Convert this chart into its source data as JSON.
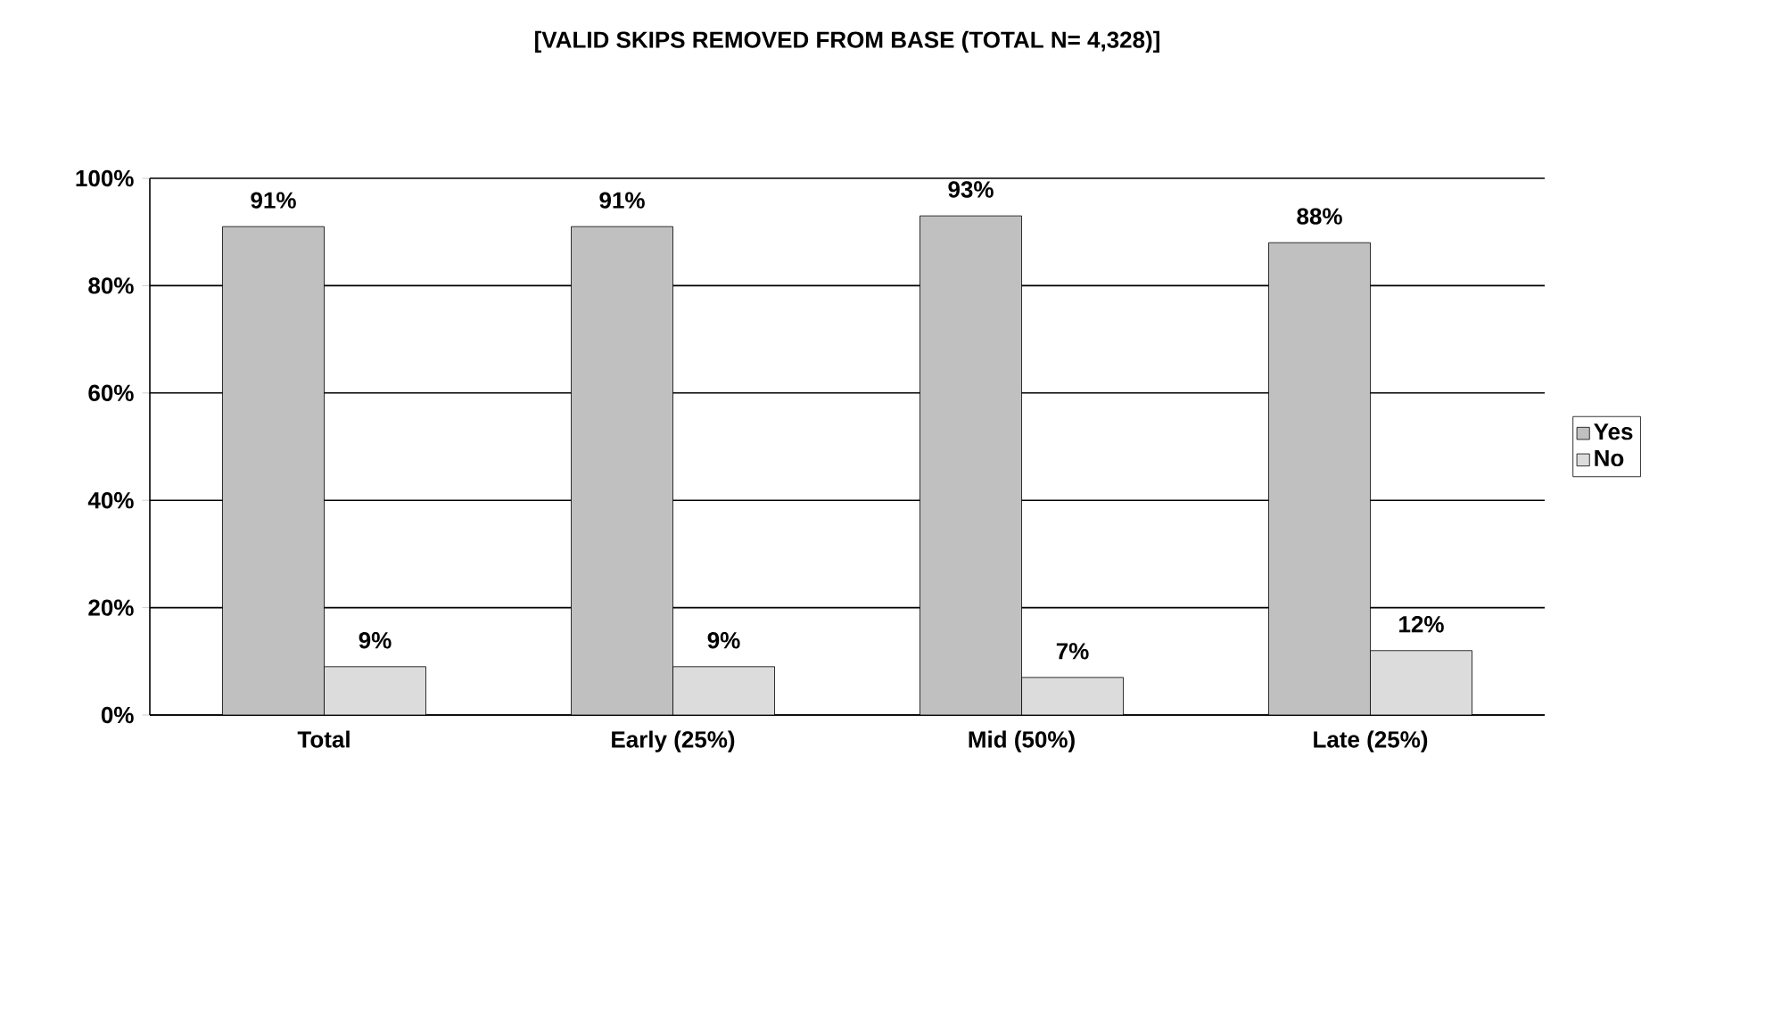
{
  "chart_data": {
    "type": "bar",
    "title": "[VALID SKIPS REMOVED FROM BASE (TOTAL N= 4,328)]",
    "categories": [
      "Total",
      "Early (25%)",
      "Mid (50%)",
      "Late (25%)"
    ],
    "series": [
      {
        "name": "Yes",
        "color": "#c0c0c0",
        "values": [
          91,
          91,
          93,
          88
        ],
        "value_labels": [
          "91%",
          "91%",
          "93%",
          "88%"
        ]
      },
      {
        "name": "No",
        "color": "#dcdcdc",
        "values": [
          9,
          9,
          7,
          12
        ],
        "value_labels": [
          "9%",
          "9%",
          "7%",
          "12%"
        ]
      }
    ],
    "ylim": [
      0,
      100
    ],
    "yticks": [
      {
        "value": 0,
        "label": "0%"
      },
      {
        "value": 20,
        "label": "20%"
      },
      {
        "value": 40,
        "label": "40%"
      },
      {
        "value": 60,
        "label": "60%"
      },
      {
        "value": 80,
        "label": "80%"
      },
      {
        "value": 100,
        "label": "100%"
      }
    ],
    "grid": "y",
    "legend": "right"
  }
}
